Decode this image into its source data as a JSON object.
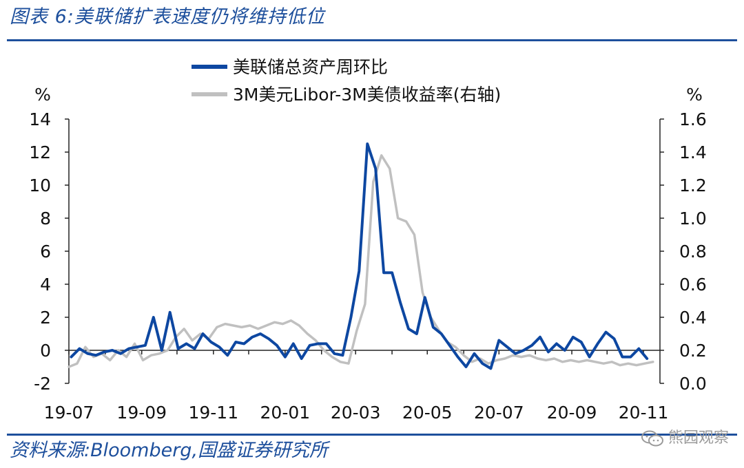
{
  "figure": {
    "title": "图表 6:美联储扩表速度仍将维持低位",
    "source": "资料来源:Bloomberg,国盛证券研究所",
    "watermark": "熊园观察"
  },
  "colors": {
    "accent": "#1d4f9c",
    "series1": "#0d47a1",
    "series2": "#c0c0c0"
  },
  "chart_data": {
    "type": "line",
    "legend_position": "top-center",
    "grid": false,
    "x_tick_labels": [
      "19-07",
      "19-09",
      "19-11",
      "20-01",
      "20-03",
      "20-05",
      "20-07",
      "20-09",
      "20-11"
    ],
    "y_left": {
      "unit_label": "%",
      "range": [
        -2,
        14
      ],
      "ticks": [
        -2,
        0,
        2,
        4,
        6,
        8,
        10,
        12,
        14
      ]
    },
    "y_right": {
      "unit_label": "%",
      "range": [
        0.0,
        1.6
      ],
      "ticks": [
        "0.0",
        "0.2",
        "0.4",
        "0.6",
        "0.8",
        "1.0",
        "1.2",
        "1.4",
        "1.6"
      ]
    },
    "series": [
      {
        "name": "美联储总资产周环比",
        "axis": "left",
        "color": "#0d47a1",
        "x": [
          "2019-07-03",
          "2019-07-10",
          "2019-07-17",
          "2019-07-24",
          "2019-07-31",
          "2019-08-07",
          "2019-08-14",
          "2019-08-21",
          "2019-08-28",
          "2019-09-04",
          "2019-09-11",
          "2019-09-18",
          "2019-09-25",
          "2019-10-02",
          "2019-10-09",
          "2019-10-16",
          "2019-10-23",
          "2019-10-30",
          "2019-11-06",
          "2019-11-13",
          "2019-11-20",
          "2019-11-27",
          "2019-12-04",
          "2019-12-11",
          "2019-12-18",
          "2019-12-25",
          "2020-01-01",
          "2020-01-08",
          "2020-01-15",
          "2020-01-22",
          "2020-01-29",
          "2020-02-05",
          "2020-02-12",
          "2020-02-19",
          "2020-02-26",
          "2020-03-04",
          "2020-03-11",
          "2020-03-18",
          "2020-03-25",
          "2020-04-01",
          "2020-04-08",
          "2020-04-15",
          "2020-04-22",
          "2020-04-29",
          "2020-05-06",
          "2020-05-13",
          "2020-05-20",
          "2020-05-27",
          "2020-06-03",
          "2020-06-10",
          "2020-06-17",
          "2020-06-24",
          "2020-07-01",
          "2020-07-08",
          "2020-07-15",
          "2020-07-22",
          "2020-07-29",
          "2020-08-05",
          "2020-08-12",
          "2020-08-19",
          "2020-08-26",
          "2020-09-02",
          "2020-09-09",
          "2020-09-16",
          "2020-09-23",
          "2020-09-30",
          "2020-10-07",
          "2020-10-14",
          "2020-10-21",
          "2020-10-28",
          "2020-11-04"
        ],
        "values": [
          -0.4,
          0.1,
          -0.2,
          -0.3,
          -0.1,
          0.0,
          -0.2,
          0.1,
          0.2,
          0.3,
          2.0,
          0.0,
          2.3,
          0.1,
          0.4,
          0.1,
          1.0,
          0.5,
          0.2,
          -0.3,
          0.5,
          0.4,
          0.8,
          1.0,
          0.7,
          0.3,
          -0.4,
          0.4,
          -0.5,
          0.3,
          0.4,
          0.4,
          -0.2,
          -0.3,
          2.0,
          4.8,
          12.5,
          11.0,
          4.7,
          4.7,
          2.9,
          1.3,
          1.0,
          3.2,
          1.4,
          1.0,
          0.3,
          -0.4,
          -1.0,
          -0.2,
          -0.8,
          -1.1,
          0.6,
          0.2,
          -0.2,
          0.0,
          0.3,
          0.8,
          -0.1,
          0.4,
          0.0,
          0.8,
          0.5,
          -0.4,
          0.4,
          1.1,
          0.7,
          -0.4,
          -0.4,
          0.1,
          -0.5
        ]
      },
      {
        "name": "3M美元Libor-3M美债收益率(右轴)",
        "axis": "right",
        "color": "#c0c0c0",
        "x": [
          "2019-07-01",
          "2019-07-08",
          "2019-07-15",
          "2019-07-22",
          "2019-07-29",
          "2019-08-05",
          "2019-08-12",
          "2019-08-19",
          "2019-08-26",
          "2019-09-02",
          "2019-09-09",
          "2019-09-16",
          "2019-09-23",
          "2019-09-30",
          "2019-10-07",
          "2019-10-14",
          "2019-10-21",
          "2019-10-28",
          "2019-11-04",
          "2019-11-11",
          "2019-11-18",
          "2019-11-25",
          "2019-12-02",
          "2019-12-09",
          "2019-12-16",
          "2019-12-23",
          "2019-12-30",
          "2020-01-06",
          "2020-01-13",
          "2020-01-20",
          "2020-01-27",
          "2020-02-03",
          "2020-02-10",
          "2020-02-17",
          "2020-02-24",
          "2020-03-02",
          "2020-03-09",
          "2020-03-16",
          "2020-03-23",
          "2020-03-30",
          "2020-04-06",
          "2020-04-13",
          "2020-04-20",
          "2020-04-27",
          "2020-05-04",
          "2020-05-11",
          "2020-05-18",
          "2020-05-25",
          "2020-06-01",
          "2020-06-08",
          "2020-06-15",
          "2020-06-22",
          "2020-06-29",
          "2020-07-06",
          "2020-07-13",
          "2020-07-20",
          "2020-07-27",
          "2020-08-03",
          "2020-08-10",
          "2020-08-17",
          "2020-08-24",
          "2020-08-31",
          "2020-09-07",
          "2020-09-14",
          "2020-09-21",
          "2020-09-28",
          "2020-10-05",
          "2020-10-12",
          "2020-10-19",
          "2020-10-26",
          "2020-11-02",
          "2020-11-09"
        ],
        "values": [
          0.1,
          0.12,
          0.22,
          0.16,
          0.18,
          0.14,
          0.2,
          0.16,
          0.24,
          0.14,
          0.17,
          0.18,
          0.2,
          0.28,
          0.33,
          0.26,
          0.3,
          0.27,
          0.34,
          0.36,
          0.35,
          0.34,
          0.35,
          0.33,
          0.35,
          0.37,
          0.36,
          0.38,
          0.35,
          0.3,
          0.26,
          0.2,
          0.16,
          0.13,
          0.12,
          0.32,
          0.48,
          1.22,
          1.38,
          1.3,
          1.0,
          0.98,
          0.9,
          0.55,
          0.4,
          0.32,
          0.25,
          0.22,
          0.17,
          0.13,
          0.15,
          0.12,
          0.14,
          0.15,
          0.17,
          0.16,
          0.17,
          0.15,
          0.14,
          0.15,
          0.13,
          0.14,
          0.13,
          0.14,
          0.13,
          0.12,
          0.13,
          0.11,
          0.12,
          0.11,
          0.12,
          0.13
        ]
      }
    ]
  }
}
